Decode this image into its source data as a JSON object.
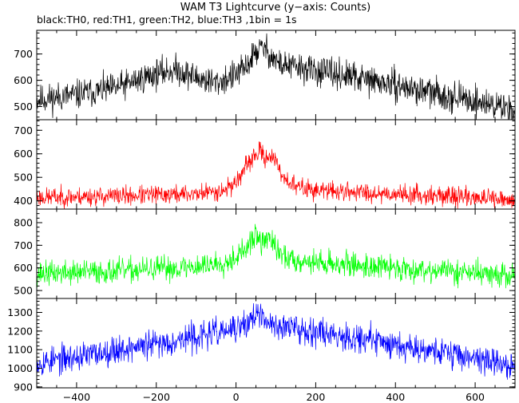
{
  "chart_data": {
    "type": "line",
    "title": "WAM T3 Lightcurve (y−axis: Counts)",
    "subtitle": "black:TH0, red:TH1, green:TH2, blue:TH3 ,1bin = 1s",
    "xlabel": "",
    "xlim": [
      -500,
      700
    ],
    "x_ticks": [
      -400,
      -200,
      0,
      200,
      400,
      600
    ],
    "x_tick_labels": [
      "−400",
      "−200",
      "0",
      "200",
      "400",
      "600"
    ],
    "x_step": 1,
    "grid": false,
    "panels": [
      {
        "series_name": "TH0",
        "color": "#000000",
        "ylim": [
          450,
          790
        ],
        "y_ticks": [
          500,
          600,
          700
        ],
        "profile_x": [
          -500,
          -400,
          -300,
          -250,
          -200,
          -150,
          -100,
          -50,
          0,
          25,
          50,
          70,
          90,
          110,
          150,
          200,
          300,
          400,
          500,
          600,
          700
        ],
        "profile_y": [
          525,
          545,
          570,
          600,
          625,
          640,
          610,
          590,
          620,
          650,
          710,
          725,
          690,
          660,
          650,
          635,
          610,
          580,
          550,
          520,
          490
        ],
        "noise": 28,
        "seed": 11
      },
      {
        "series_name": "TH1",
        "color": "#ff0000",
        "ylim": [
          365,
          745
        ],
        "y_ticks": [
          400,
          500,
          600,
          700
        ],
        "profile_x": [
          -500,
          -300,
          -100,
          -30,
          0,
          20,
          40,
          60,
          75,
          85,
          100,
          120,
          150,
          200,
          400,
          600,
          700
        ],
        "profile_y": [
          415,
          420,
          430,
          445,
          480,
          530,
          580,
          610,
          580,
          600,
          560,
          500,
          460,
          445,
          430,
          415,
          395
        ],
        "noise": 20,
        "seed": 23
      },
      {
        "series_name": "TH2",
        "color": "#00ff00",
        "ylim": [
          465,
          860
        ],
        "y_ticks": [
          500,
          600,
          700,
          800
        ],
        "profile_x": [
          -500,
          -300,
          -100,
          -30,
          0,
          30,
          50,
          65,
          80,
          100,
          130,
          200,
          400,
          600,
          700
        ],
        "profile_y": [
          575,
          585,
          605,
          625,
          650,
          690,
          750,
          700,
          745,
          680,
          640,
          625,
          600,
          580,
          560
        ],
        "noise": 27,
        "seed": 37
      },
      {
        "series_name": "TH3",
        "color": "#0000ff",
        "ylim": [
          895,
          1375
        ],
        "y_ticks": [
          900,
          1000,
          1100,
          1200,
          1300
        ],
        "profile_x": [
          -500,
          -400,
          -300,
          -200,
          -100,
          0,
          30,
          50,
          70,
          100,
          200,
          300,
          400,
          500,
          600,
          700
        ],
        "profile_y": [
          1030,
          1060,
          1100,
          1130,
          1170,
          1210,
          1240,
          1300,
          1250,
          1230,
          1200,
          1165,
          1130,
          1095,
          1055,
          1010
        ],
        "noise": 38,
        "seed": 53
      }
    ]
  }
}
